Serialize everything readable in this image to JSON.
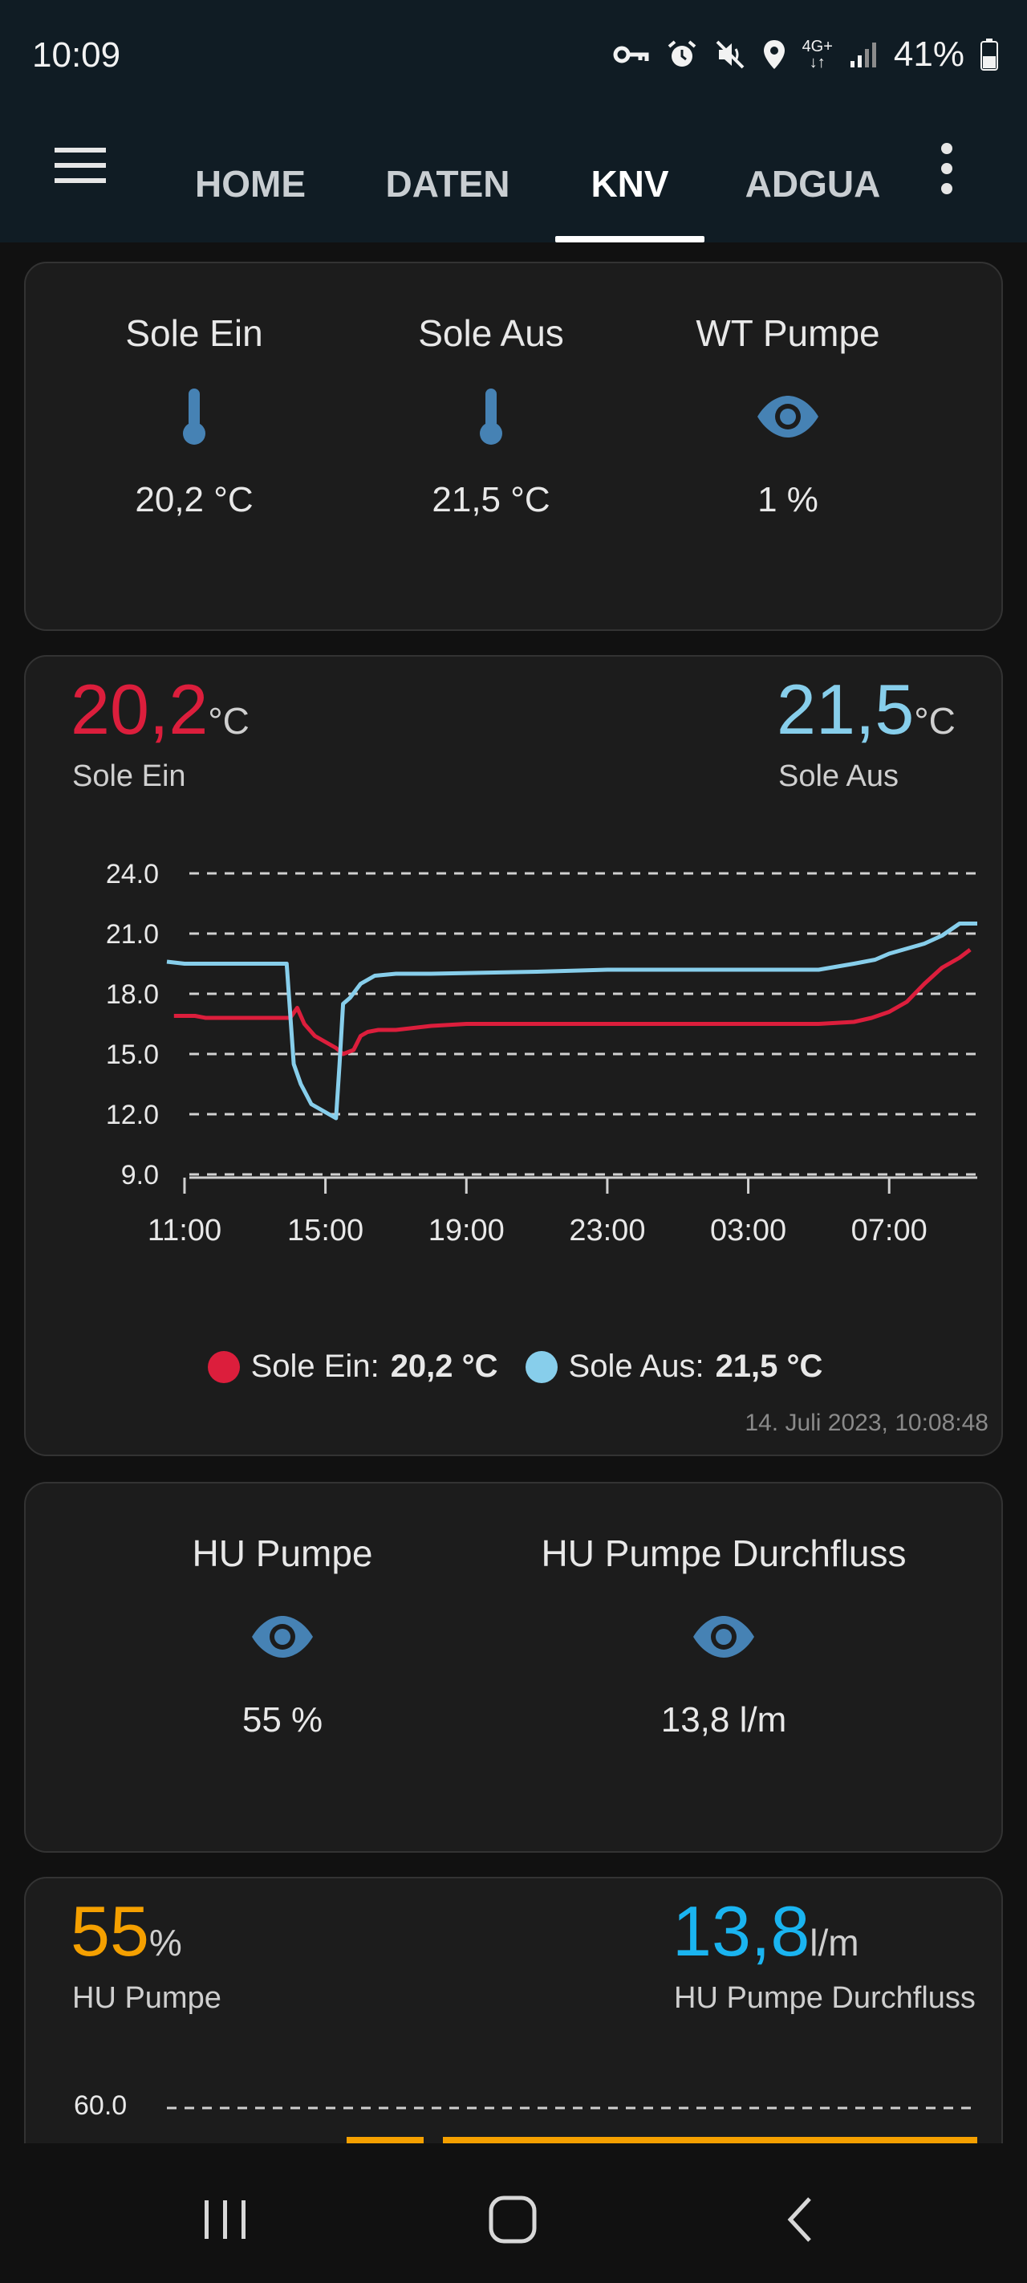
{
  "status_bar": {
    "time": "10:09",
    "icons": [
      "vpn-key-icon",
      "alarm-icon",
      "mute-icon",
      "location-icon",
      "4g-icon",
      "signal-icon"
    ],
    "network": "4G+",
    "battery": "41%"
  },
  "app_bar": {
    "tabs": [
      {
        "label": "HOME",
        "active": false
      },
      {
        "label": "DATEN",
        "active": false
      },
      {
        "label": "KNV",
        "active": true
      },
      {
        "label": "ADGUA",
        "active": false
      }
    ]
  },
  "card1": {
    "entities": [
      {
        "name": "Sole Ein",
        "icon": "thermometer-icon",
        "value": "20,2 °C"
      },
      {
        "name": "Sole Aus",
        "icon": "thermometer-icon",
        "value": "21,5 °C"
      },
      {
        "name": "WT Pumpe",
        "icon": "eye-icon",
        "value": "1 %"
      }
    ]
  },
  "card2": {
    "primary": {
      "value": "20,2",
      "unit": "°C",
      "label": "Sole Ein",
      "color": "#dc1e3c"
    },
    "secondary": {
      "value": "21,5",
      "unit": "°C",
      "label": "Sole Aus",
      "color": "#87ceeb"
    },
    "legend": [
      {
        "name": "Sole Ein:",
        "value": "20,2 °C",
        "color": "#dc1e3c"
      },
      {
        "name": "Sole Aus:",
        "value": "21,5 °C",
        "color": "#87ceeb"
      }
    ],
    "timestamp": "14. Juli 2023, 10:08:48"
  },
  "card3": {
    "entities": [
      {
        "name": "HU Pumpe",
        "icon": "eye-icon",
        "value": "55 %"
      },
      {
        "name": "HU Pumpe Durchfluss",
        "icon": "eye-icon",
        "value": "13,8 l/m"
      }
    ]
  },
  "card4": {
    "primary": {
      "value": "55",
      "unit": "%",
      "label": "HU Pumpe",
      "color": "#f5a000"
    },
    "secondary": {
      "value": "13,8",
      "unit": "l/m",
      "label": "HU Pumpe Durchfluss",
      "color": "#1ab4f0"
    },
    "ytick": "60.0"
  },
  "chart_data": {
    "type": "line",
    "title": "",
    "xlabel": "",
    "ylabel": "",
    "ylim": [
      9,
      24
    ],
    "yticks": [
      "24.0",
      "21.0",
      "18.0",
      "15.0",
      "12.0",
      "9.0"
    ],
    "xticks": [
      "11:00",
      "15:00",
      "19:00",
      "23:00",
      "03:00",
      "07:00"
    ],
    "xlim": [
      10.5,
      33.5
    ],
    "grid": true,
    "legend_position": "bottom",
    "series": [
      {
        "name": "Sole Ein",
        "color": "#dc1e3c",
        "x": [
          10.7,
          11.3,
          11.6,
          14.0,
          14.2,
          14.4,
          14.7,
          15.0,
          15.3,
          15.5,
          15.8,
          16.0,
          16.2,
          16.5,
          17.0,
          18.0,
          19.0,
          20.0,
          23.0,
          27.0,
          29.0,
          30.0,
          30.5,
          31.0,
          31.5,
          32.0,
          32.5,
          33.0,
          33.3
        ],
        "y": [
          16.9,
          16.9,
          16.8,
          16.8,
          17.3,
          16.5,
          15.9,
          15.6,
          15.3,
          15.0,
          15.2,
          15.9,
          16.1,
          16.2,
          16.2,
          16.4,
          16.5,
          16.5,
          16.5,
          16.5,
          16.5,
          16.6,
          16.8,
          17.1,
          17.6,
          18.5,
          19.3,
          19.8,
          20.2
        ]
      },
      {
        "name": "Sole Aus",
        "color": "#87ceeb",
        "x": [
          10.5,
          11.0,
          12.0,
          13.5,
          13.9,
          14.0,
          14.1,
          14.3,
          14.6,
          15.0,
          15.2,
          15.3,
          15.4,
          15.5,
          15.7,
          16.0,
          16.4,
          17.0,
          18.0,
          21.0,
          23.0,
          27.0,
          29.0,
          30.0,
          30.6,
          31.0,
          31.4,
          32.0,
          32.5,
          33.0,
          33.5
        ],
        "y": [
          19.6,
          19.5,
          19.5,
          19.5,
          19.5,
          17.0,
          14.5,
          13.5,
          12.5,
          12.1,
          11.9,
          11.8,
          14.5,
          17.5,
          17.8,
          18.5,
          18.9,
          19.0,
          19.0,
          19.1,
          19.2,
          19.2,
          19.2,
          19.5,
          19.7,
          20.0,
          20.2,
          20.5,
          20.9,
          21.5,
          21.5
        ]
      }
    ]
  }
}
